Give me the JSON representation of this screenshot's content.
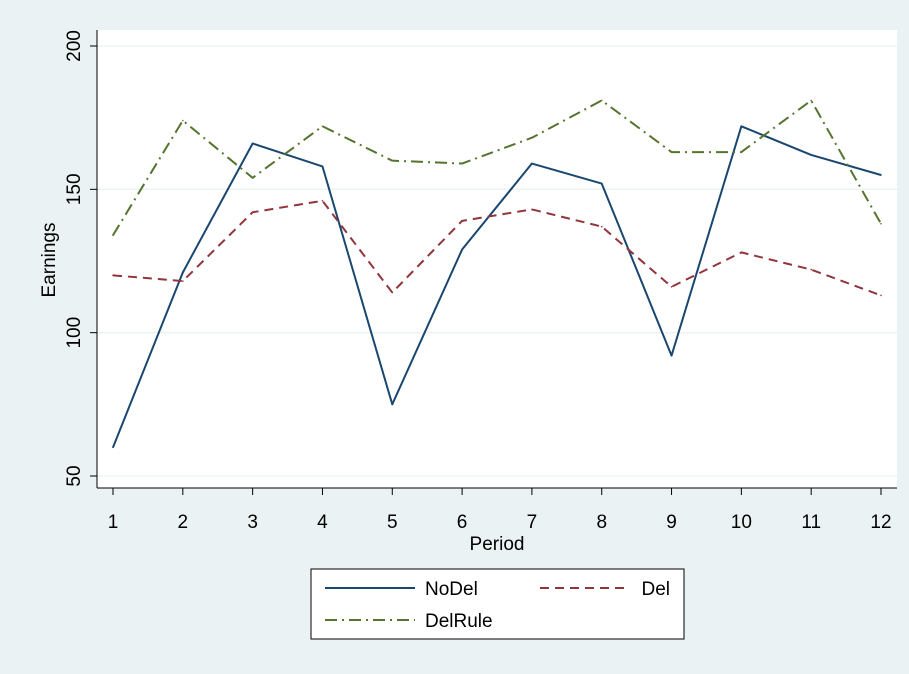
{
  "chart_data": {
    "type": "line",
    "xlabel": "Period",
    "ylabel": "Earnings",
    "x": [
      1,
      2,
      3,
      4,
      5,
      6,
      7,
      8,
      9,
      10,
      11,
      12
    ],
    "x_tick_labels": [
      "1",
      "2",
      "3",
      "4",
      "5",
      "6",
      "7",
      "8",
      "9",
      "10",
      "11",
      "12"
    ],
    "y_ticks": [
      50,
      100,
      150,
      200
    ],
    "y_tick_labels": [
      "50",
      "100",
      "150",
      "200"
    ],
    "xlim": [
      1,
      12
    ],
    "ylim": [
      50,
      200
    ],
    "grid": "horizontal",
    "legend_position": "bottom",
    "series": [
      {
        "name": "NoDel",
        "color": "#1a476f",
        "dash": "solid",
        "values": [
          60,
          121,
          166,
          158,
          75,
          129,
          159,
          152,
          92,
          172,
          162,
          155
        ]
      },
      {
        "name": "Del",
        "color": "#90353b",
        "dash": "dash",
        "values": [
          120,
          118,
          142,
          146,
          114,
          139,
          143,
          137,
          116,
          128,
          122,
          113
        ]
      },
      {
        "name": "DelRule",
        "color": "#55752f",
        "dash": "dashdot",
        "values": [
          134,
          174,
          154,
          172,
          160,
          159,
          168,
          181,
          163,
          163,
          181,
          138
        ]
      }
    ]
  }
}
